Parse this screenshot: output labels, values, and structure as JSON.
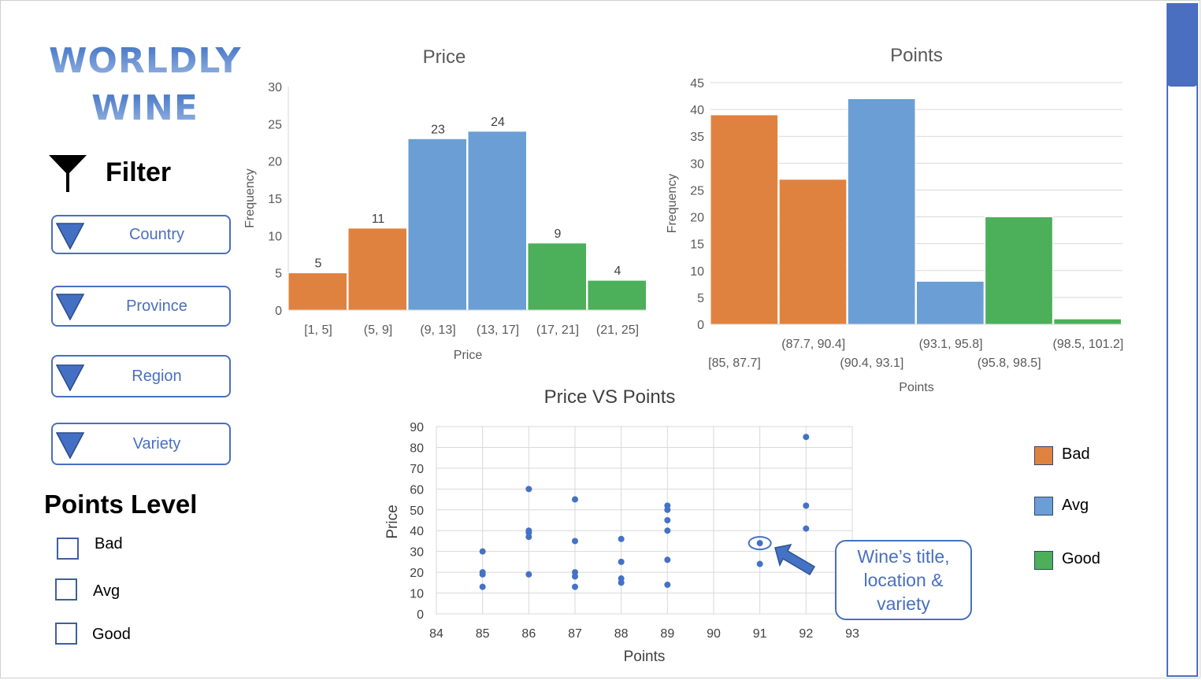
{
  "brand": {
    "line1": "WORLDLY",
    "line2": "WINE"
  },
  "filter": {
    "label": "Filter",
    "icon": "funnel-icon",
    "dropdowns": [
      "Country",
      "Province",
      "Region",
      "Variety"
    ]
  },
  "points_level": {
    "heading": "Points Level",
    "options": [
      "Bad",
      "Avg",
      "Good"
    ]
  },
  "legend": [
    {
      "label": "Bad",
      "color": "#e0823f"
    },
    {
      "label": "Avg",
      "color": "#6a9ed4"
    },
    {
      "label": "Good",
      "color": "#4caf5a"
    }
  ],
  "callout": {
    "text": "Wine’s title, location & variety"
  },
  "colors": {
    "bad": "#e0823f",
    "avg": "#6a9ed4",
    "good": "#4caf5a",
    "accent": "#4a6fc0",
    "scatter": "#4472c4"
  },
  "chart_data": [
    {
      "type": "bar",
      "title": "Price",
      "xlabel": "Price",
      "ylabel": "Frequency",
      "categories": [
        "[1, 5]",
        "(5, 9]",
        "(9, 13]",
        "(13, 17]",
        "(17, 21]",
        "(21, 25]"
      ],
      "values": [
        5,
        11,
        23,
        24,
        9,
        4
      ],
      "levels": [
        "bad",
        "bad",
        "avg",
        "avg",
        "good",
        "good"
      ],
      "ylim": [
        0,
        30
      ],
      "yticks": [
        0,
        5,
        10,
        15,
        20,
        25,
        30
      ],
      "data_labels": true,
      "grid": false
    },
    {
      "type": "bar",
      "title": "Points",
      "xlabel": "Points",
      "ylabel": "Frequency",
      "categories": [
        "[85, 87.7]",
        "(87.7, 90.4]",
        "(90.4, 93.1]",
        "(93.1, 95.8]",
        "(95.8, 98.5]",
        "(98.5, 101.2]"
      ],
      "values": [
        39,
        27,
        42,
        8,
        20,
        1
      ],
      "levels": [
        "bad",
        "bad",
        "avg",
        "avg",
        "good",
        "good"
      ],
      "ylim": [
        0,
        45
      ],
      "yticks": [
        0,
        5,
        10,
        15,
        20,
        25,
        30,
        35,
        40,
        45
      ],
      "data_labels": false,
      "grid": true
    },
    {
      "type": "scatter",
      "title": "Price VS Points",
      "xlabel": "Points",
      "ylabel": "Price",
      "xlim": [
        84,
        93
      ],
      "ylim": [
        0,
        90
      ],
      "xticks": [
        84,
        85,
        86,
        87,
        88,
        89,
        90,
        91,
        92,
        93
      ],
      "yticks": [
        0,
        10,
        20,
        30,
        40,
        50,
        60,
        70,
        80,
        90
      ],
      "grid": true,
      "points": [
        [
          85,
          30
        ],
        [
          85,
          20
        ],
        [
          85,
          19
        ],
        [
          85,
          13
        ],
        [
          86,
          60
        ],
        [
          86,
          40
        ],
        [
          86,
          39
        ],
        [
          86,
          37
        ],
        [
          86,
          19
        ],
        [
          87,
          55
        ],
        [
          87,
          35
        ],
        [
          87,
          20
        ],
        [
          87,
          18
        ],
        [
          87,
          13
        ],
        [
          88,
          36
        ],
        [
          88,
          25
        ],
        [
          88,
          17
        ],
        [
          88,
          15
        ],
        [
          89,
          52
        ],
        [
          89,
          50
        ],
        [
          89,
          45
        ],
        [
          89,
          40
        ],
        [
          89,
          26
        ],
        [
          89,
          14
        ],
        [
          91,
          34
        ],
        [
          91,
          24
        ],
        [
          92,
          85
        ],
        [
          92,
          52
        ],
        [
          92,
          41
        ]
      ],
      "highlight": [
        91,
        34
      ]
    }
  ]
}
